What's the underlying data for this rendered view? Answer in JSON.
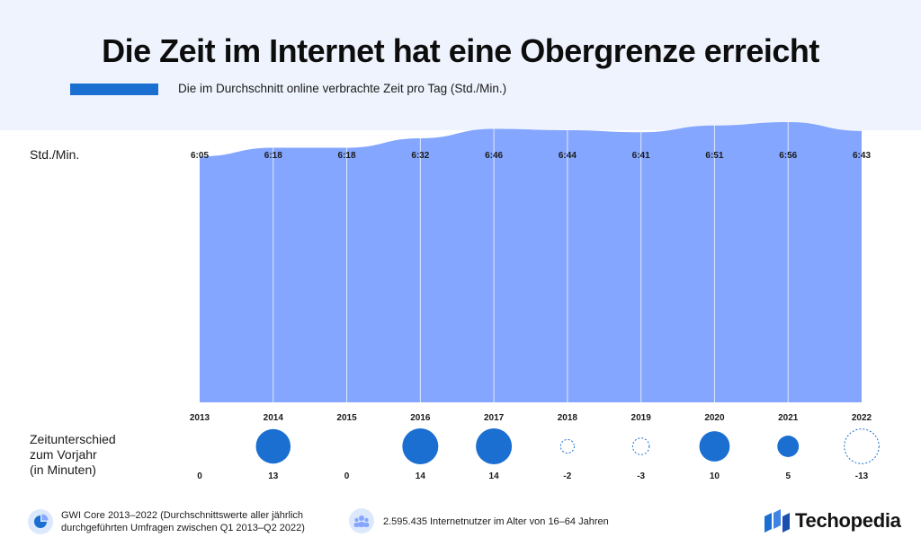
{
  "title": "Die Zeit im Internet hat eine Obergrenze erreicht",
  "subtitle": "Die im Durchschnitt online verbrachte Zeit pro Tag (Std./Min.)",
  "chart_data": {
    "type": "area",
    "ylabel": "Std./Min.",
    "categories": [
      "2013",
      "2014",
      "2015",
      "2016",
      "2017",
      "2018",
      "2019",
      "2020",
      "2021",
      "2022"
    ],
    "value_labels": [
      "6:05",
      "6:18",
      "6:18",
      "6:32",
      "6:46",
      "6:44",
      "6:41",
      "6:51",
      "6:56",
      "6:43"
    ],
    "values_minutes": [
      365,
      378,
      378,
      392,
      406,
      404,
      401,
      411,
      416,
      403
    ],
    "ylim": [
      0,
      480
    ],
    "series_color": "#84a6fe",
    "diff": {
      "title": [
        "Zeitunterschied",
        "zum Vorjahr",
        "(in Minuten)"
      ],
      "labels": [
        "0",
        "13",
        "0",
        "14",
        "14",
        "-2",
        "-3",
        "10",
        "5",
        "-13"
      ],
      "values": [
        0,
        13,
        0,
        14,
        14,
        -2,
        -3,
        10,
        5,
        -13
      ],
      "positive_color": "#1a6fd1",
      "negative_color": "#1a6fd1"
    }
  },
  "footer": {
    "source": [
      "GWI Core 2013–2022 (Durchschnittswerte aller jährlich",
      "durchgeführten Umfragen zwischen Q1 2013–Q2 2022)"
    ],
    "sample": "2.595.435 Internetnutzer im Alter von 16–64 Jahren",
    "brand": "Techopedia",
    "source_icon": "chart-pie-icon",
    "sample_icon": "people-icon"
  }
}
